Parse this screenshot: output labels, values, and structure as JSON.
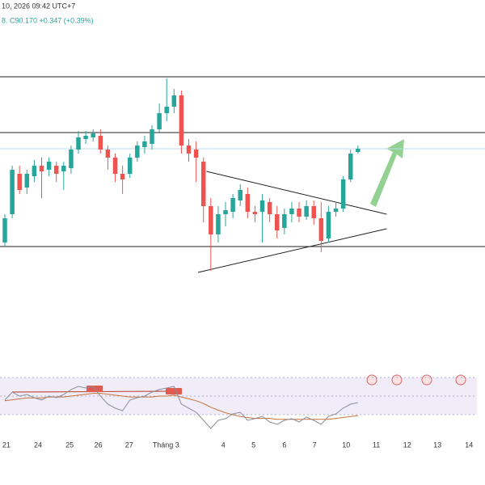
{
  "chart_data": {
    "type": "candlestick",
    "header_date": "10, 2026 09:42 UTC+7",
    "quote": "8. C90.170 +0.347 (+0.39%)",
    "up_color": "#26a69a",
    "down_color": "#ef5350",
    "xlim": [
      -0.66,
      65.27
    ],
    "ylim": [
      79.93,
      96.33
    ],
    "xticks": [
      {
        "value": 0.2,
        "label": "21"
      },
      {
        "value": 4.5,
        "label": "24"
      },
      {
        "value": 8.8,
        "label": "25"
      },
      {
        "value": 12.7,
        "label": "26"
      },
      {
        "value": 16.9,
        "label": "27"
      },
      {
        "value": 21.9,
        "label": "Tháng 3"
      },
      {
        "value": 29.7,
        "label": "4"
      },
      {
        "value": 33.8,
        "label": "5"
      },
      {
        "value": 38.0,
        "label": "6"
      },
      {
        "value": 42.1,
        "label": "7"
      },
      {
        "value": 46.4,
        "label": "10"
      },
      {
        "value": 50.5,
        "label": "11"
      },
      {
        "value": 54.7,
        "label": "12"
      },
      {
        "value": 58.8,
        "label": "13"
      },
      {
        "value": 63.1,
        "label": "14"
      }
    ],
    "candles": {
      "open": [
        85.53,
        86.93,
        88.93,
        88.25,
        88.81,
        89.33,
        89.13,
        89.33,
        89.05,
        89.21,
        90.13,
        90.65,
        90.73,
        90.81,
        90.13,
        89.73,
        88.93,
        88.93,
        89.73,
        90.25,
        90.41,
        91.13,
        91.93,
        92.25,
        92.81,
        90.33,
        90.13,
        89.53,
        87.33,
        85.93,
        86.93,
        87.05,
        87.61,
        87.93,
        87.05,
        87.05,
        87.53,
        86.93,
        86.25,
        86.93,
        87.21,
        86.81,
        87.33,
        86.73,
        85.73,
        87.05,
        87.21,
        88.65,
        90.01
      ],
      "high": [
        86.93,
        89.33,
        89.33,
        89.13,
        89.61,
        89.73,
        89.73,
        89.53,
        89.53,
        90.33,
        91.05,
        91.05,
        91.13,
        91.13,
        90.33,
        89.93,
        89.33,
        89.93,
        90.53,
        90.81,
        91.33,
        92.41,
        93.65,
        93.13,
        93.05,
        90.65,
        90.53,
        89.73,
        87.73,
        87.33,
        87.53,
        87.93,
        88.41,
        88.25,
        87.33,
        87.93,
        87.73,
        87.33,
        87.21,
        87.53,
        87.53,
        87.61,
        87.61,
        87.53,
        87.33,
        87.53,
        88.81,
        90.13,
        90.33
      ],
      "low": [
        85.33,
        86.73,
        87.93,
        87.93,
        88.53,
        87.73,
        88.81,
        88.53,
        88.13,
        88.93,
        89.93,
        90.41,
        90.53,
        89.93,
        89.13,
        88.53,
        87.93,
        88.73,
        89.53,
        89.93,
        90.13,
        90.93,
        91.53,
        91.93,
        89.93,
        89.53,
        88.53,
        86.53,
        84.13,
        85.53,
        86.33,
        86.73,
        87.33,
        86.73,
        86.53,
        85.53,
        86.53,
        85.73,
        85.93,
        86.53,
        86.53,
        86.65,
        86.41,
        85.05,
        85.53,
        86.81,
        87.05,
        88.53,
        89.93
      ],
      "close": [
        86.73,
        89.13,
        88.13,
        88.93,
        89.33,
        89.05,
        89.53,
        88.93,
        89.33,
        90.13,
        90.73,
        90.81,
        90.93,
        90.13,
        89.73,
        88.93,
        88.65,
        89.73,
        90.33,
        90.53,
        91.13,
        91.93,
        92.25,
        92.81,
        90.33,
        89.93,
        89.73,
        87.33,
        85.93,
        86.93,
        87.13,
        87.73,
        88.13,
        87.05,
        86.93,
        87.61,
        86.93,
        86.13,
        86.93,
        87.21,
        86.81,
        87.33,
        86.73,
        85.61,
        87.05,
        87.21,
        88.65,
        89.93,
        90.17
      ]
    },
    "levels": [
      93.73,
      90.97,
      85.33
    ],
    "last_price": 90.17,
    "trendlines": [
      {
        "x": [
          27.4,
          51.9
        ],
        "y": [
          89.05,
          86.93
        ]
      },
      {
        "x": [
          26.26,
          51.9
        ],
        "y": [
          84.05,
          86.21
        ]
      }
    ],
    "rsi_ylim": [
      0,
      100
    ],
    "rsi_levels": [
      30,
      50,
      70
    ],
    "rsi": [
      45.7,
      54.3,
      50.0,
      51.7,
      48.3,
      45.7,
      50.0,
      48.3,
      51.7,
      57.0,
      60.4,
      58.7,
      60.4,
      50.0,
      41.3,
      37.0,
      34.3,
      45.7,
      48.3,
      50.0,
      54.3,
      57.0,
      58.7,
      60.4,
      41.3,
      37.0,
      32.6,
      23.9,
      15.2,
      23.9,
      25.7,
      30.9,
      32.6,
      23.9,
      25.7,
      28.3,
      22.2,
      19.6,
      23.9,
      25.7,
      22.2,
      27.4,
      23.9,
      19.6,
      28.3,
      30.9,
      37.0,
      41.3,
      43.0
    ],
    "rsi_ma": [
      45,
      46,
      47,
      48,
      48,
      48,
      49,
      49,
      49,
      50,
      51,
      52,
      53,
      53,
      52,
      51,
      50,
      49,
      49,
      49,
      49,
      50,
      50,
      51,
      49,
      47,
      45,
      42,
      38,
      35,
      32,
      30,
      28,
      27,
      26,
      26,
      26,
      25,
      25,
      25,
      25,
      25,
      25,
      25,
      25,
      26,
      27,
      28,
      29
    ],
    "rsi_color": "#8a8f99",
    "rsi_ma_color": "#c8703a"
  }
}
